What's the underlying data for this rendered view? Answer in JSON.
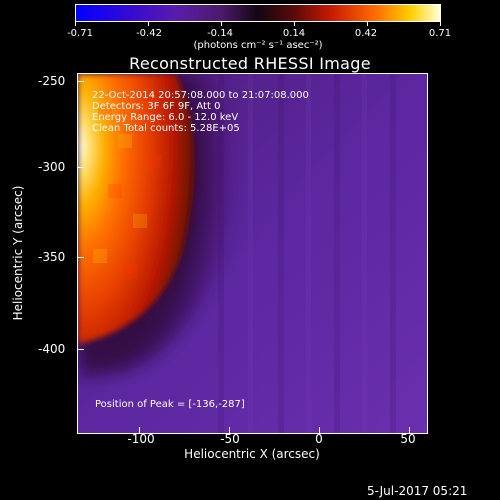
{
  "colorbar": {
    "tick_labels": [
      "-0.71",
      "-0.42",
      "-0.14",
      "0.14",
      "0.42",
      "0.71"
    ],
    "unit": "(photons cm⁻² s⁻¹ asec⁻²)"
  },
  "title": "Reconstructed RHESSI Image",
  "info": {
    "line1": "22-Oct-2014 20:57:08.000 to 21:07:08.000",
    "line2": "Detectors: 3F 6F 9F, Att 0",
    "line3": "Energy Range: 6.0 - 12.0 keV",
    "line4": "Clean    Total counts: 5.28E+05"
  },
  "peak_text": "Position of Peak = [-136,-287]",
  "axes": {
    "xlabel": "Heliocentric X (arcsec)",
    "ylabel": "Heliocentric Y (arcsec)",
    "xticks": [
      "-100",
      "-50",
      "0",
      "50"
    ],
    "yticks": [
      "-250",
      "-300",
      "-350",
      "-400"
    ],
    "xlim": [
      -135,
      60
    ],
    "ylim": [
      -445,
      -245
    ]
  },
  "timestamp": "5-Jul-2017 05:21"
}
